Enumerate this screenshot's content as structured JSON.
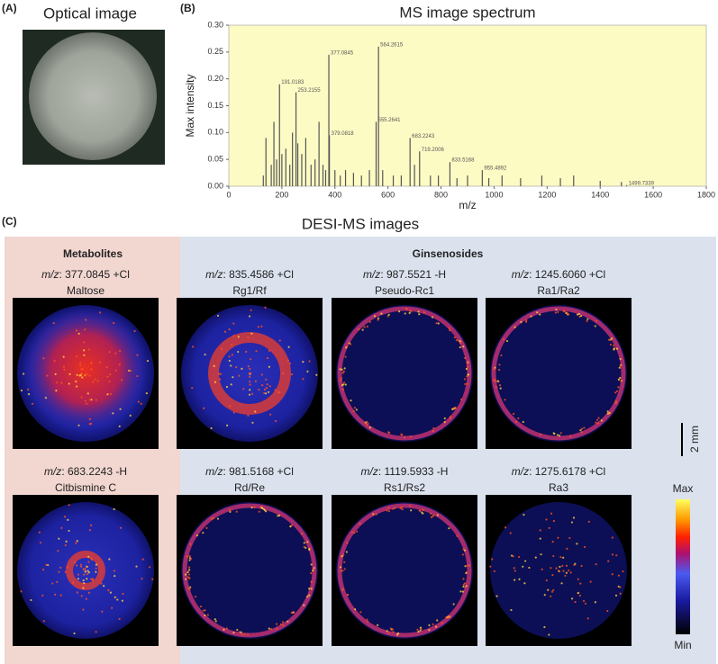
{
  "panel_a": {
    "label": "(A)",
    "title": "Optical image"
  },
  "panel_b": {
    "label": "(B)"
  },
  "chart_data": {
    "type": "bar",
    "title": "MS image spectrum",
    "xlabel": "m/z",
    "ylabel": "Max intensity",
    "color": "#555555",
    "background": "#fdfbc4",
    "xlim": [
      0,
      1800
    ],
    "xticks": [
      0,
      200,
      400,
      600,
      800,
      1000,
      1200,
      1400,
      1600,
      1800
    ],
    "ylim": [
      0,
      0.3
    ],
    "yticks": [
      {
        "value": 0,
        "label": "0.00"
      },
      {
        "value": 0.05,
        "label": "0.05"
      },
      {
        "value": 0.1,
        "label": "0.10"
      },
      {
        "value": 0.15,
        "label": "0.15"
      },
      {
        "value": 0.2,
        "label": "0.20"
      },
      {
        "value": 0.25,
        "label": "0.25"
      },
      {
        "value": 0.3,
        "label": "0.30"
      }
    ],
    "x": [
      130,
      140,
      160,
      170,
      180,
      191.0183,
      200,
      215,
      230,
      240,
      253.2155,
      260,
      275,
      290,
      310,
      325,
      340,
      355,
      365,
      377.0845,
      379.0818,
      400,
      420,
      440,
      470,
      500,
      530,
      555.2641,
      564.2615,
      580,
      620,
      650,
      683.2243,
      700,
      719.2006,
      760,
      790,
      833.5168,
      860,
      900,
      955.4892,
      980,
      1030,
      1100,
      1180,
      1250,
      1300,
      1400,
      1480,
      1499.7339
    ],
    "values": [
      0.02,
      0.09,
      0.04,
      0.12,
      0.05,
      0.19,
      0.06,
      0.07,
      0.04,
      0.1,
      0.175,
      0.08,
      0.06,
      0.09,
      0.04,
      0.05,
      0.12,
      0.04,
      0.03,
      0.245,
      0.095,
      0.03,
      0.02,
      0.03,
      0.025,
      0.02,
      0.03,
      0.12,
      0.26,
      0.03,
      0.02,
      0.02,
      0.09,
      0.04,
      0.065,
      0.02,
      0.02,
      0.045,
      0.015,
      0.02,
      0.03,
      0.015,
      0.02,
      0.015,
      0.02,
      0.015,
      0.02,
      0.01,
      0.008,
      0.002
    ],
    "annotations": [
      {
        "text": "191.0183",
        "x": 191.0183,
        "y": 0.19
      },
      {
        "text": "253.2155",
        "x": 253.2155,
        "y": 0.175
      },
      {
        "text": "377.0845",
        "x": 377.0845,
        "y": 0.245
      },
      {
        "text": "379.0818",
        "x": 379.0818,
        "y": 0.095
      },
      {
        "text": "555.2641",
        "x": 555.2641,
        "y": 0.12
      },
      {
        "text": "564.2615",
        "x": 564.2615,
        "y": 0.26
      },
      {
        "text": "683.2243",
        "x": 683.2243,
        "y": 0.09
      },
      {
        "text": "719.2006",
        "x": 719.2006,
        "y": 0.065
      },
      {
        "text": "833.5168",
        "x": 833.5168,
        "y": 0.045
      },
      {
        "text": "955.4892",
        "x": 955.4892,
        "y": 0.03
      },
      {
        "text": "1499.7339",
        "x": 1499.7339,
        "y": 0.002
      }
    ]
  },
  "panel_c": {
    "label": "(C)",
    "title": "DESI-MS images",
    "groups": [
      "Metabolites",
      "Ginsenosides"
    ],
    "tiles": [
      {
        "prefix": "m/z",
        "ion": ": 377.0845 +Cl",
        "name": "Maltose"
      },
      {
        "prefix": "m/z",
        "ion": ": 835.4586 +Cl",
        "name": "Rg1/Rf"
      },
      {
        "prefix": "m/z",
        "ion": ": 987.5521 -H",
        "name": "Pseudo-Rc1"
      },
      {
        "prefix": "m/z",
        "ion": ": 1245.6060 +Cl",
        "name": "Ra1/Ra2"
      },
      {
        "prefix": "m/z",
        "ion": ": 683.2243 -H",
        "name": "Citbismine C"
      },
      {
        "prefix": "m/z",
        "ion": ": 981.5168 +Cl",
        "name": "Rd/Re"
      },
      {
        "prefix": "m/z",
        "ion": ": 1119.5933 -H",
        "name": "Rs1/Rs2"
      },
      {
        "prefix": "m/z",
        "ion": ": 1275.6178 +Cl",
        "name": "Ra3"
      }
    ],
    "scale_bar": "2 mm",
    "colorbar": {
      "max": "Max",
      "min": "Min"
    }
  }
}
